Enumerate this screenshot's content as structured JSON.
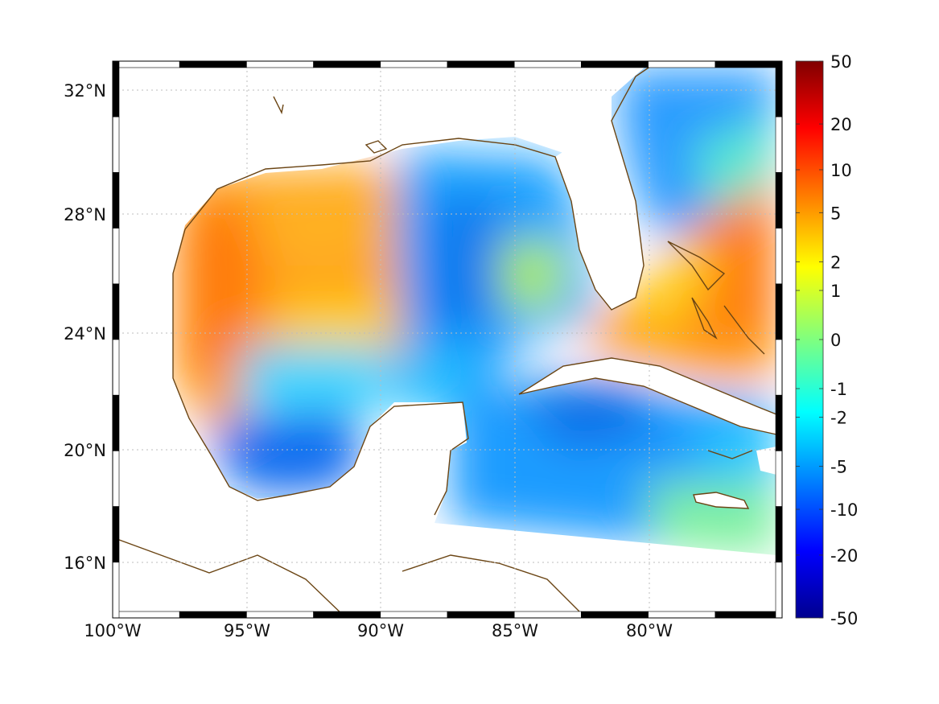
{
  "map": {
    "lat_ticks": [
      "32°N",
      "28°N",
      "24°N",
      "20°N",
      "16°N"
    ],
    "lon_ticks": [
      "100°W",
      "95°W",
      "90°W",
      "85°W",
      "80°W"
    ],
    "lat_range": [
      14.3,
      33
    ],
    "lon_range": [
      -100,
      -75.1
    ],
    "projection": "mercator",
    "frame_style": "black-white-checker",
    "graticule": "dotted-grey",
    "coastline_color": "#6b4514",
    "land_fill": "#ffffff",
    "missing_data_fill": "#ffffff"
  },
  "colorbar": {
    "colormap": "jet",
    "scale": "symmetric-log",
    "tick_labels": [
      "50",
      "20",
      "10",
      "5",
      "2",
      "1",
      "0",
      "-1",
      "-2",
      "-5",
      "-10",
      "-20",
      "-50"
    ],
    "tick_values": [
      50,
      20,
      10,
      5,
      2,
      1,
      0,
      -1,
      -2,
      -5,
      -10,
      -20,
      -50
    ],
    "range": [
      -50,
      50
    ]
  },
  "field": {
    "description_regions": [
      {
        "region": "western Gulf of Mexico",
        "approx_value": 5
      },
      {
        "region": "central Gulf loop current",
        "approx_value": -4
      },
      {
        "region": "Bay of Campeche",
        "approx_value": -5
      },
      {
        "region": "Florida Straits / Bahamas",
        "approx_value": 5
      },
      {
        "region": "Caribbean south of Cuba",
        "approx_value": -3
      },
      {
        "region": "Atlantic off Georgia/Carolina",
        "approx_value": -3
      }
    ]
  }
}
